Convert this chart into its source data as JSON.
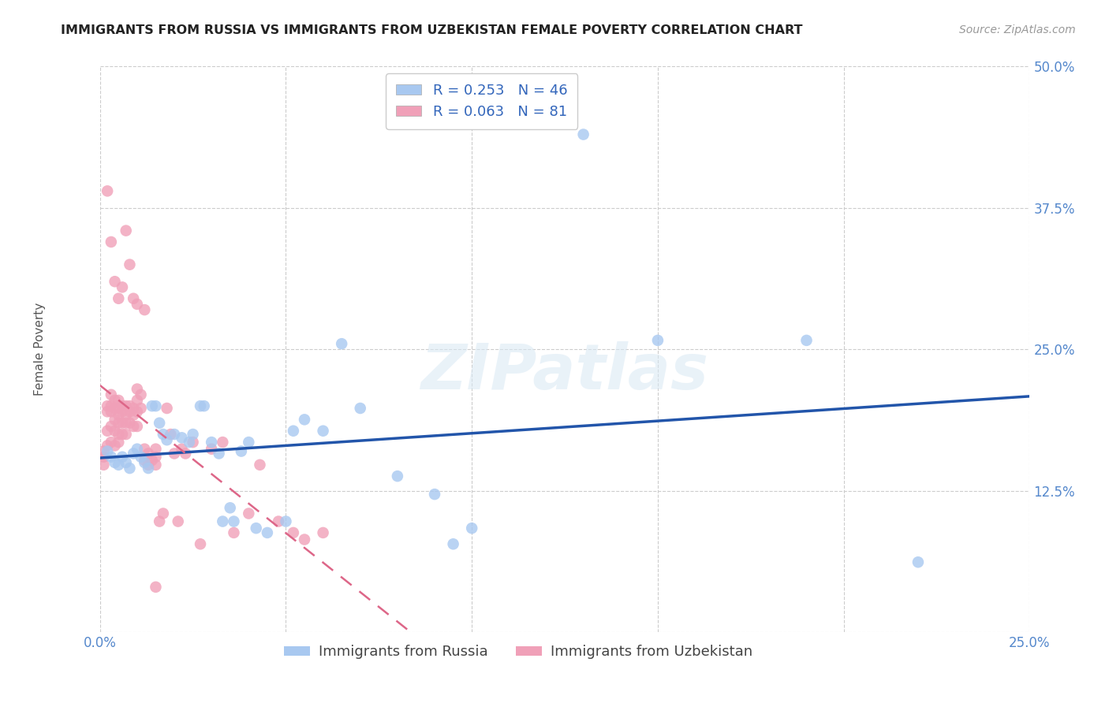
{
  "title": "IMMIGRANTS FROM RUSSIA VS IMMIGRANTS FROM UZBEKISTAN FEMALE POVERTY CORRELATION CHART",
  "source": "Source: ZipAtlas.com",
  "ylabel": "Female Poverty",
  "xlim": [
    0.0,
    0.25
  ],
  "ylim": [
    0.0,
    0.5
  ],
  "xticks": [
    0.0,
    0.05,
    0.1,
    0.15,
    0.2,
    0.25
  ],
  "yticks": [
    0.0,
    0.125,
    0.25,
    0.375,
    0.5
  ],
  "xticklabels": [
    "0.0%",
    "",
    "",
    "",
    "",
    "25.0%"
  ],
  "yticklabels": [
    "",
    "12.5%",
    "25.0%",
    "37.5%",
    "50.0%"
  ],
  "russia_R": 0.253,
  "russia_N": 46,
  "uzbekistan_R": 0.063,
  "uzbekistan_N": 81,
  "russia_color": "#a8c8f0",
  "uzbekistan_color": "#f0a0b8",
  "russia_line_color": "#2255aa",
  "uzbekistan_line_color": "#dd6688",
  "russia_x": [
    0.002,
    0.003,
    0.004,
    0.005,
    0.006,
    0.007,
    0.008,
    0.009,
    0.01,
    0.011,
    0.012,
    0.013,
    0.014,
    0.015,
    0.016,
    0.017,
    0.018,
    0.02,
    0.022,
    0.024,
    0.025,
    0.027,
    0.028,
    0.03,
    0.032,
    0.033,
    0.035,
    0.036,
    0.038,
    0.04,
    0.042,
    0.045,
    0.05,
    0.052,
    0.055,
    0.06,
    0.065,
    0.07,
    0.08,
    0.09,
    0.095,
    0.1,
    0.13,
    0.15,
    0.19,
    0.22
  ],
  "russia_y": [
    0.16,
    0.155,
    0.15,
    0.148,
    0.155,
    0.15,
    0.145,
    0.158,
    0.162,
    0.155,
    0.15,
    0.145,
    0.2,
    0.2,
    0.185,
    0.175,
    0.17,
    0.175,
    0.172,
    0.168,
    0.175,
    0.2,
    0.2,
    0.168,
    0.158,
    0.098,
    0.11,
    0.098,
    0.16,
    0.168,
    0.092,
    0.088,
    0.098,
    0.178,
    0.188,
    0.178,
    0.255,
    0.198,
    0.138,
    0.122,
    0.078,
    0.092,
    0.44,
    0.258,
    0.258,
    0.062
  ],
  "uzbekistan_x": [
    0.001,
    0.001,
    0.001,
    0.002,
    0.002,
    0.002,
    0.002,
    0.003,
    0.003,
    0.003,
    0.003,
    0.003,
    0.004,
    0.004,
    0.004,
    0.004,
    0.004,
    0.005,
    0.005,
    0.005,
    0.005,
    0.005,
    0.005,
    0.006,
    0.006,
    0.006,
    0.006,
    0.007,
    0.007,
    0.007,
    0.007,
    0.008,
    0.008,
    0.008,
    0.009,
    0.009,
    0.009,
    0.01,
    0.01,
    0.01,
    0.01,
    0.011,
    0.011,
    0.012,
    0.012,
    0.013,
    0.013,
    0.014,
    0.015,
    0.015,
    0.015,
    0.016,
    0.017,
    0.018,
    0.019,
    0.02,
    0.021,
    0.022,
    0.023,
    0.025,
    0.027,
    0.03,
    0.033,
    0.036,
    0.04,
    0.043,
    0.048,
    0.052,
    0.055,
    0.06,
    0.002,
    0.003,
    0.004,
    0.005,
    0.006,
    0.007,
    0.008,
    0.009,
    0.01,
    0.012,
    0.015
  ],
  "uzbekistan_y": [
    0.16,
    0.155,
    0.148,
    0.2,
    0.195,
    0.178,
    0.165,
    0.21,
    0.2,
    0.195,
    0.182,
    0.168,
    0.205,
    0.198,
    0.188,
    0.178,
    0.165,
    0.205,
    0.198,
    0.192,
    0.185,
    0.175,
    0.168,
    0.2,
    0.195,
    0.185,
    0.175,
    0.2,
    0.192,
    0.185,
    0.175,
    0.2,
    0.195,
    0.185,
    0.198,
    0.192,
    0.182,
    0.215,
    0.205,
    0.195,
    0.182,
    0.21,
    0.198,
    0.162,
    0.152,
    0.158,
    0.148,
    0.152,
    0.162,
    0.155,
    0.148,
    0.098,
    0.105,
    0.198,
    0.175,
    0.158,
    0.098,
    0.162,
    0.158,
    0.168,
    0.078,
    0.162,
    0.168,
    0.088,
    0.105,
    0.148,
    0.098,
    0.088,
    0.082,
    0.088,
    0.39,
    0.345,
    0.31,
    0.295,
    0.305,
    0.355,
    0.325,
    0.295,
    0.29,
    0.285,
    0.04
  ]
}
